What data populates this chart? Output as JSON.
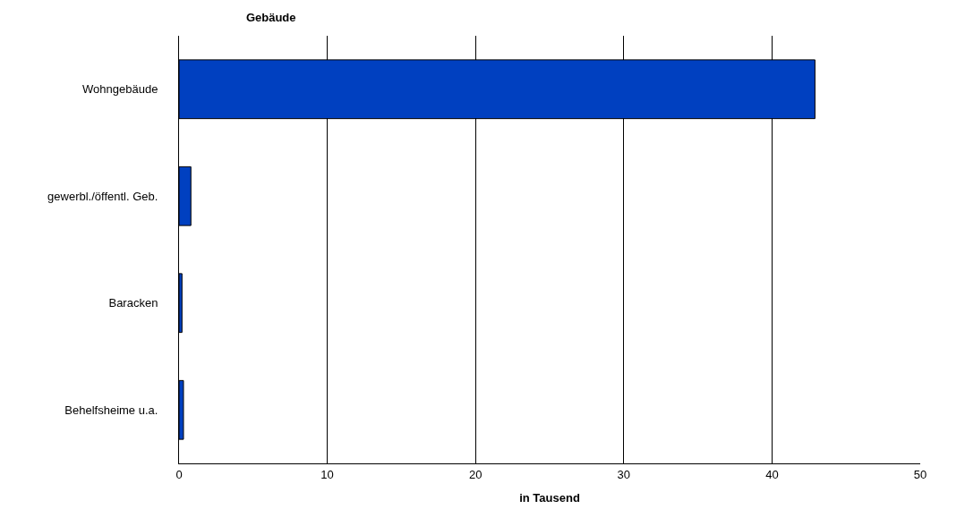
{
  "chart_data": {
    "type": "bar",
    "orientation": "horizontal",
    "title": "Gebäude",
    "xlabel": "in Tausend",
    "categories": [
      "Wohngebäude",
      "gewerbl./öffentl. Geb.",
      "Baracken",
      "Behelfsheime u.a."
    ],
    "values": [
      42.9,
      0.8,
      0.2,
      0.3
    ],
    "color": "#0040c0",
    "xlim": [
      0,
      50
    ],
    "xticks": [
      0,
      10,
      20,
      30,
      40,
      50
    ],
    "grid": "x",
    "legend": false
  }
}
